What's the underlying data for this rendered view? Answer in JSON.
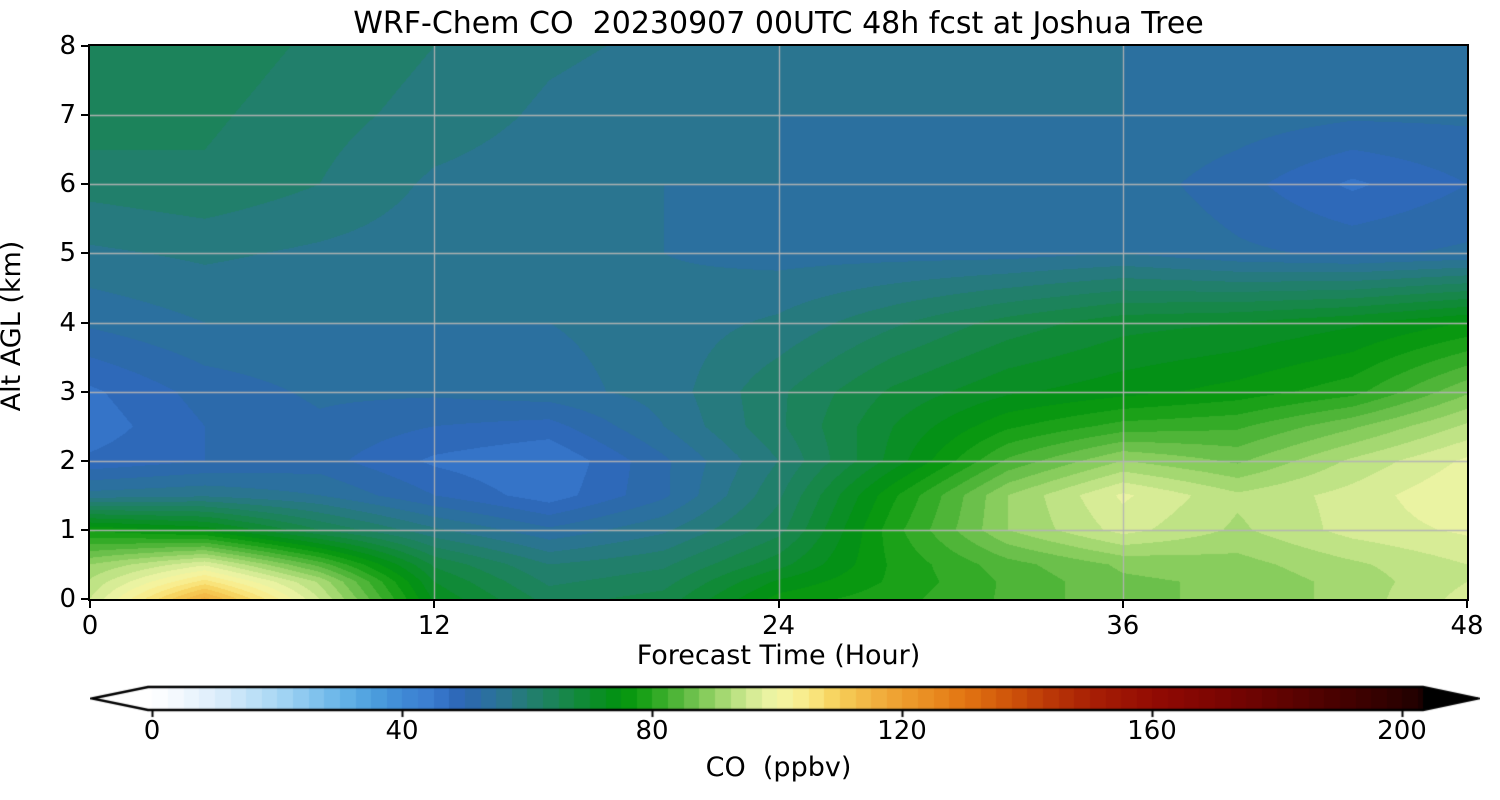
{
  "title": "WRF-Chem CO  20230907 00UTC 48h fcst at Joshua Tree",
  "axes": {
    "xlabel": "Forecast Time (Hour)",
    "ylabel": "Alt AGL (km)",
    "xticks": [
      0,
      12,
      24,
      36,
      48
    ],
    "yticks": [
      0,
      1,
      2,
      3,
      4,
      5,
      6,
      7,
      8
    ],
    "xlim": [
      0,
      48
    ],
    "ylim": [
      0,
      8
    ],
    "grid_color": "#b3b3b3"
  },
  "colorbar": {
    "label": "CO  (ppbv)",
    "ticks": [
      0,
      40,
      80,
      120,
      160,
      200
    ],
    "range": [
      0,
      203.5
    ],
    "extend": "both",
    "under_color": "#ffffff",
    "over_color": "#000000"
  },
  "chart_data": {
    "type": "heatmap",
    "style": "filled_contour",
    "title": "WRF-Chem CO  20230907 00UTC 48h fcst at Joshua Tree",
    "xlabel": "Forecast Time (Hour)",
    "ylabel": "Alt AGL (km)",
    "zlabel": "CO  (ppbv)",
    "xlim": [
      0,
      48
    ],
    "ylim": [
      0,
      8
    ],
    "zlim": [
      0,
      210
    ],
    "contour_interval": 2.5,
    "grid": true,
    "legend_position": "bottom-colorbar",
    "x": [
      0,
      4,
      8,
      12,
      16,
      20,
      24,
      28,
      32,
      36,
      40,
      44,
      48
    ],
    "y": [
      0,
      0.25,
      0.5,
      1,
      1.5,
      2,
      2.5,
      3,
      4,
      5,
      6,
      7,
      8
    ],
    "values": [
      [
        95,
        116,
        95,
        72,
        64,
        66,
        76,
        79,
        83,
        87,
        88,
        91,
        96
      ],
      [
        93,
        106,
        92,
        70,
        62,
        64,
        73,
        78,
        83,
        87,
        88,
        91,
        95
      ],
      [
        90,
        97,
        84,
        67,
        60,
        62,
        69,
        78,
        84,
        88,
        89,
        92,
        95
      ],
      [
        77,
        74,
        65,
        58,
        53,
        57,
        64,
        79,
        90,
        96,
        92,
        96,
        98
      ],
      [
        56,
        57,
        55,
        50,
        46,
        52,
        62,
        77,
        90,
        98,
        93,
        96,
        100
      ],
      [
        48,
        50,
        51,
        47,
        45,
        52,
        60,
        71,
        83,
        90,
        87,
        93,
        98
      ],
      [
        46,
        50,
        52,
        50,
        49,
        55,
        62,
        70,
        77,
        81,
        82,
        87,
        93
      ],
      [
        47,
        51,
        53,
        53,
        54,
        56,
        62,
        68,
        72,
        74,
        76,
        79,
        87
      ],
      [
        53,
        55,
        55,
        55,
        55,
        56,
        58,
        62,
        66,
        69,
        70,
        72,
        75
      ],
      [
        57,
        58,
        57,
        56,
        55,
        55,
        54,
        54,
        54,
        55,
        53,
        52,
        53
      ],
      [
        61,
        62,
        60,
        57,
        56,
        55,
        55,
        54,
        54,
        54,
        51,
        47,
        50
      ],
      [
        64,
        63,
        61,
        59,
        57,
        56,
        55,
        55,
        55,
        55,
        54,
        53,
        53
      ],
      [
        65,
        64,
        62,
        60,
        58,
        57,
        56,
        55,
        55,
        55,
        55,
        54,
        54
      ]
    ],
    "colormap_stops": [
      [
        0,
        "#ffffff"
      ],
      [
        5,
        "#f0f7fd"
      ],
      [
        10,
        "#ddeefb"
      ],
      [
        15,
        "#c3e3f8"
      ],
      [
        20,
        "#a8d7f4"
      ],
      [
        25,
        "#88c6ee"
      ],
      [
        30,
        "#68b5e8"
      ],
      [
        35,
        "#4da0de"
      ],
      [
        40,
        "#3f8ad6"
      ],
      [
        42.5,
        "#3d82d2"
      ],
      [
        45,
        "#3b7cd0"
      ],
      [
        47.5,
        "#2f6cc0"
      ],
      [
        50,
        "#2d66b2"
      ],
      [
        52.5,
        "#2b6da4"
      ],
      [
        55,
        "#2a7299"
      ],
      [
        57.5,
        "#297887"
      ],
      [
        60,
        "#237c74"
      ],
      [
        62.5,
        "#1e8162"
      ],
      [
        65,
        "#1a8553"
      ],
      [
        67.5,
        "#13883f"
      ],
      [
        70,
        "#0d8c2e"
      ],
      [
        72.5,
        "#068f1c"
      ],
      [
        75,
        "#029310"
      ],
      [
        77.5,
        "#0f9c10"
      ],
      [
        80,
        "#27a51f"
      ],
      [
        82.5,
        "#41b02f"
      ],
      [
        85,
        "#5cba41"
      ],
      [
        87.5,
        "#79c654"
      ],
      [
        90,
        "#96d366"
      ],
      [
        92.5,
        "#b2dd7b"
      ],
      [
        95,
        "#cce88e"
      ],
      [
        97.5,
        "#e2f09e"
      ],
      [
        100,
        "#f1f5a5"
      ],
      [
        102.5,
        "#f7f097"
      ],
      [
        105,
        "#f9e987"
      ],
      [
        107.5,
        "#f8dc6d"
      ],
      [
        110,
        "#f6cd57"
      ],
      [
        115,
        "#f2b342"
      ],
      [
        120,
        "#ee9e2e"
      ],
      [
        125,
        "#e98a1f"
      ],
      [
        130,
        "#e27512"
      ],
      [
        135,
        "#d45e0c"
      ],
      [
        140,
        "#c64708"
      ],
      [
        145,
        "#b63206"
      ],
      [
        150,
        "#a92005"
      ],
      [
        155,
        "#9d1504"
      ],
      [
        160,
        "#930b03"
      ],
      [
        165,
        "#880703"
      ],
      [
        170,
        "#7d0502"
      ],
      [
        175,
        "#700402"
      ],
      [
        180,
        "#630301"
      ],
      [
        185,
        "#540201"
      ],
      [
        190,
        "#460100"
      ],
      [
        195,
        "#380100"
      ],
      [
        200,
        "#2a0100"
      ],
      [
        205,
        "#150000"
      ],
      [
        210,
        "#000000"
      ]
    ]
  }
}
